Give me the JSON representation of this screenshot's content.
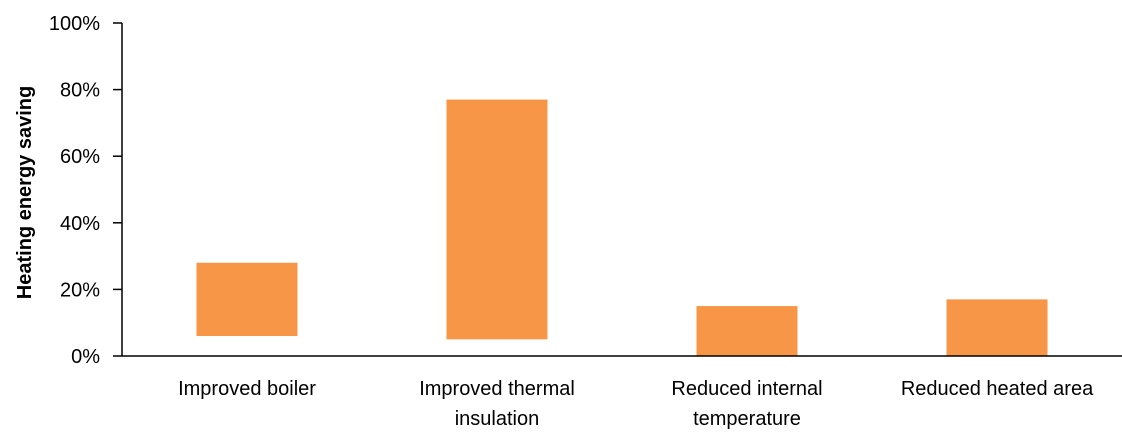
{
  "chart_data": {
    "type": "bar",
    "ylabel": "Heating energy saving",
    "ylim": [
      0,
      100
    ],
    "yticks": [
      "0%",
      "20%",
      "40%",
      "60%",
      "80%",
      "100%"
    ],
    "categories": [
      [
        "Improved boiler"
      ],
      [
        "Improved thermal",
        "insulation"
      ],
      [
        "Reduced internal",
        "temperature"
      ],
      [
        "Reduced heated area"
      ]
    ],
    "series": [
      {
        "ranges": [
          [
            6,
            28
          ],
          [
            5,
            77
          ],
          [
            0,
            15
          ],
          [
            0,
            17
          ]
        ]
      }
    ],
    "colors": {
      "bar": "#F79646",
      "axis": "#000000"
    },
    "grid": false
  }
}
